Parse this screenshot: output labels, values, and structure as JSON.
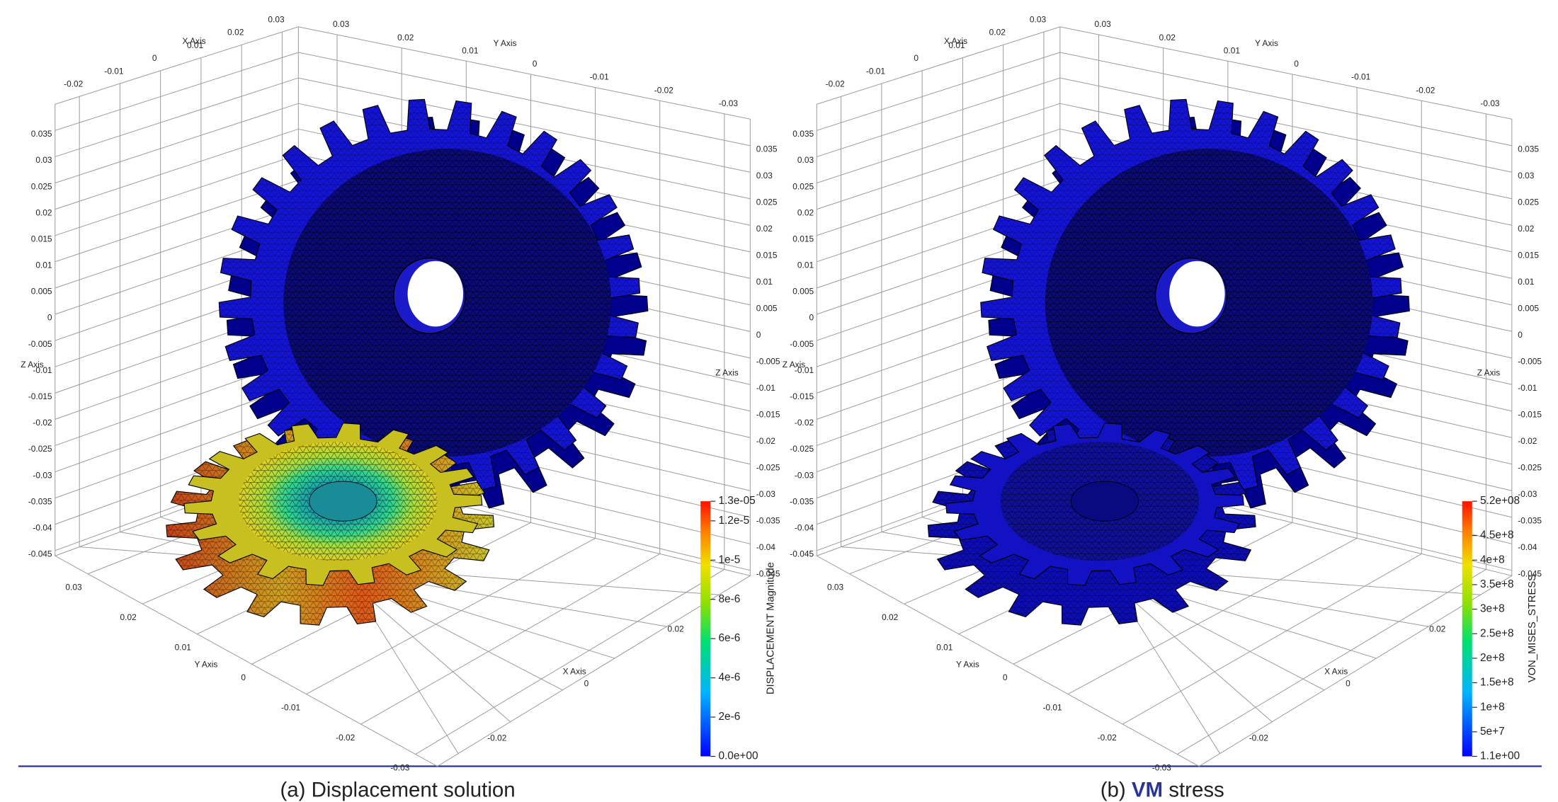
{
  "panels": [
    {
      "caption": {
        "label": "(a)",
        "text": "Displacement solution"
      },
      "colorbar": {
        "title": "DISPLACEMENT Magnitude",
        "range": [
          0,
          1.3e-05
        ],
        "ticks": [
          {
            "value": 1.3e-05,
            "label": "1.3e-05"
          },
          {
            "value": 1.2e-05,
            "label": "1.2e-5"
          },
          {
            "value": 1e-05,
            "label": "1e-5"
          },
          {
            "value": 8e-06,
            "label": "8e-6"
          },
          {
            "value": 6e-06,
            "label": "6e-6"
          },
          {
            "value": 4e-06,
            "label": "4e-6"
          },
          {
            "value": 2e-06,
            "label": "2e-6"
          },
          {
            "value": 0,
            "label": "0.0e+00"
          }
        ]
      },
      "axes": {
        "x_title": "X Axis",
        "y_title": "Y Axis",
        "z_title": "Z Axis",
        "z_ticks": [
          0.035,
          0.03,
          0.025,
          0.02,
          0.015,
          0.01,
          0.005,
          0,
          -0.005,
          -0.01,
          -0.015,
          -0.02,
          -0.025,
          -0.03,
          -0.035,
          -0.04,
          -0.045
        ],
        "x_ticks_top": [
          -0.02,
          -0.01,
          0,
          0.01,
          0.02,
          0.03
        ],
        "y_ticks_top": [
          0.03,
          0.02,
          0.01,
          0,
          -0.01,
          -0.02,
          -0.03
        ],
        "y_ticks_bottom": [
          0.03,
          0.02,
          0.01,
          0,
          -0.01,
          -0.02,
          -0.03
        ],
        "x_ticks_bottom": [
          0.02,
          0,
          -0.02
        ]
      }
    },
    {
      "caption": {
        "label": "(b)",
        "emphasis": "VM",
        "text": "stress"
      },
      "colorbar": {
        "title": "VON_MISES_STRESS",
        "range": [
          1.1,
          520000000
        ],
        "ticks": [
          {
            "value": 520000000,
            "label": "5.2e+08"
          },
          {
            "value": 450000000,
            "label": "4.5e+8"
          },
          {
            "value": 400000000,
            "label": "4e+8"
          },
          {
            "value": 350000000,
            "label": "3.5e+8"
          },
          {
            "value": 300000000,
            "label": "3e+8"
          },
          {
            "value": 250000000,
            "label": "2.5e+8"
          },
          {
            "value": 200000000,
            "label": "2e+8"
          },
          {
            "value": 150000000,
            "label": "1.5e+8"
          },
          {
            "value": 100000000,
            "label": "1e+8"
          },
          {
            "value": 50000000,
            "label": "5e+7"
          },
          {
            "value": 1.1,
            "label": "1.1e+00"
          }
        ]
      },
      "axes": {
        "x_title": "X Axis",
        "y_title": "Y Axis",
        "z_title": "Z Axis",
        "z_ticks": [
          0.035,
          0.03,
          0.025,
          0.02,
          0.015,
          0.01,
          0.005,
          0,
          -0.005,
          -0.01,
          -0.015,
          -0.02,
          -0.025,
          -0.03,
          -0.035,
          -0.04,
          -0.045
        ],
        "x_ticks_top": [
          -0.02,
          -0.01,
          0,
          0.01,
          0.02,
          0.03
        ],
        "y_ticks_top": [
          0.03,
          0.02,
          0.01,
          0,
          -0.01,
          -0.02,
          -0.03
        ],
        "y_ticks_bottom": [
          0.03,
          0.02,
          0.01,
          0,
          -0.01,
          -0.02,
          -0.03
        ],
        "x_ticks_bottom": [
          0.02,
          0,
          -0.02
        ]
      }
    }
  ]
}
